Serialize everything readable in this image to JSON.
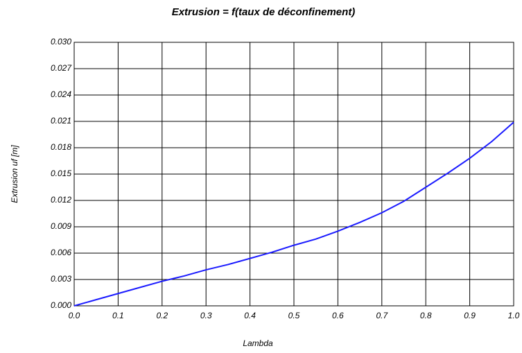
{
  "chart_data": {
    "type": "line",
    "title": "Extrusion = f(taux de déconfinement)",
    "xlabel": "Lambda",
    "ylabel": "Extrusion uf [m]",
    "x": [
      0,
      0.05,
      0.1,
      0.15,
      0.2,
      0.25,
      0.3,
      0.35,
      0.4,
      0.45,
      0.5,
      0.55,
      0.6,
      0.65,
      0.7,
      0.75,
      0.8,
      0.85,
      0.9,
      0.95,
      1.0
    ],
    "series": [
      {
        "name": "Extrusion",
        "color": "#1a1aff",
        "values": [
          0,
          0.0007,
          0.0014,
          0.0021,
          0.0028,
          0.0034,
          0.0041,
          0.0047,
          0.0054,
          0.0061,
          0.0069,
          0.0076,
          0.0085,
          0.0095,
          0.0106,
          0.0119,
          0.0135,
          0.0151,
          0.0168,
          0.0187,
          0.0209
        ]
      }
    ],
    "xlim": [
      0,
      1
    ],
    "xticks": [
      {
        "value": 0,
        "label": "0.0"
      },
      0.1,
      0.2,
      0.3,
      0.4,
      0.5,
      0.6,
      0.7,
      0.8,
      0.9,
      {
        "value": 1,
        "label": "1.0"
      }
    ],
    "ylim": [
      0,
      0.03
    ],
    "yticks": [
      {
        "value": 0,
        "label": "0.000"
      },
      0.003,
      0.006,
      0.009,
      0.012,
      0.015,
      0.018,
      0.021,
      0.024,
      0.027,
      {
        "value": 0.03,
        "label": "0.030"
      }
    ],
    "grid": true
  }
}
